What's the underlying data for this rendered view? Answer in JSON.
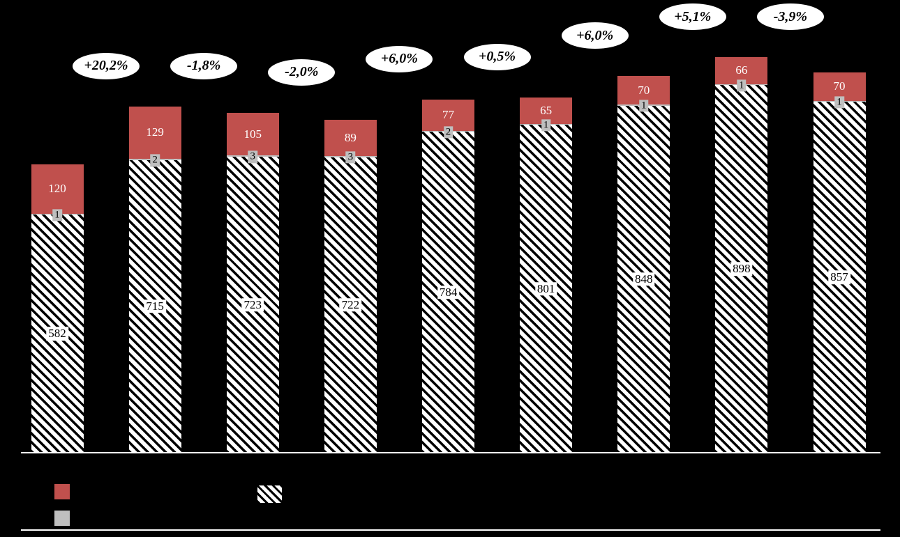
{
  "chart_data": {
    "type": "bar",
    "stacked": true,
    "orientation": "vertical",
    "background": "#000000",
    "num_bars": 9,
    "categories": [
      "",
      "",
      "",
      "",
      "",
      "",
      "",
      "",
      ""
    ],
    "series": [
      {
        "name": "base-hatched-segment",
        "style": "diagonal-hatch-pattern",
        "values": [
          582,
          715,
          723,
          722,
          784,
          801,
          848,
          898,
          857
        ]
      },
      {
        "name": "middle-gray-segment",
        "color": "#bfbfbf",
        "values": [
          1,
          2,
          3,
          3,
          2,
          1,
          1,
          1,
          1
        ]
      },
      {
        "name": "top-red-segment",
        "color": "#c0504d",
        "values": [
          120,
          129,
          105,
          89,
          77,
          65,
          70,
          66,
          70
        ]
      }
    ],
    "change_labels": [
      "+20,2%",
      "-1,8%",
      "-2,0%",
      "+6,0%",
      "+0,5%",
      "+6,0%",
      "+5,1%",
      "-3,9%"
    ],
    "legend": {
      "items": [
        {
          "swatch": "red",
          "color": "#c0504d",
          "label": ""
        },
        {
          "swatch": "gray",
          "color": "#bfbfbf",
          "label": ""
        },
        {
          "swatch": "hatched",
          "pattern": "diagonal-stripes",
          "label": ""
        }
      ]
    },
    "axes": {
      "x_axis_line_visible": true,
      "bottom_border_line_visible": true,
      "tick_labels_visible": false
    }
  },
  "colors": {
    "red": "#c0504d",
    "gray": "#bfbfbf",
    "background": "#000000",
    "value_badge_bg": "#ffffff",
    "ellipse_bg": "#ffffff",
    "ellipse_text": "#000000",
    "axis_line": "#ffffff"
  }
}
